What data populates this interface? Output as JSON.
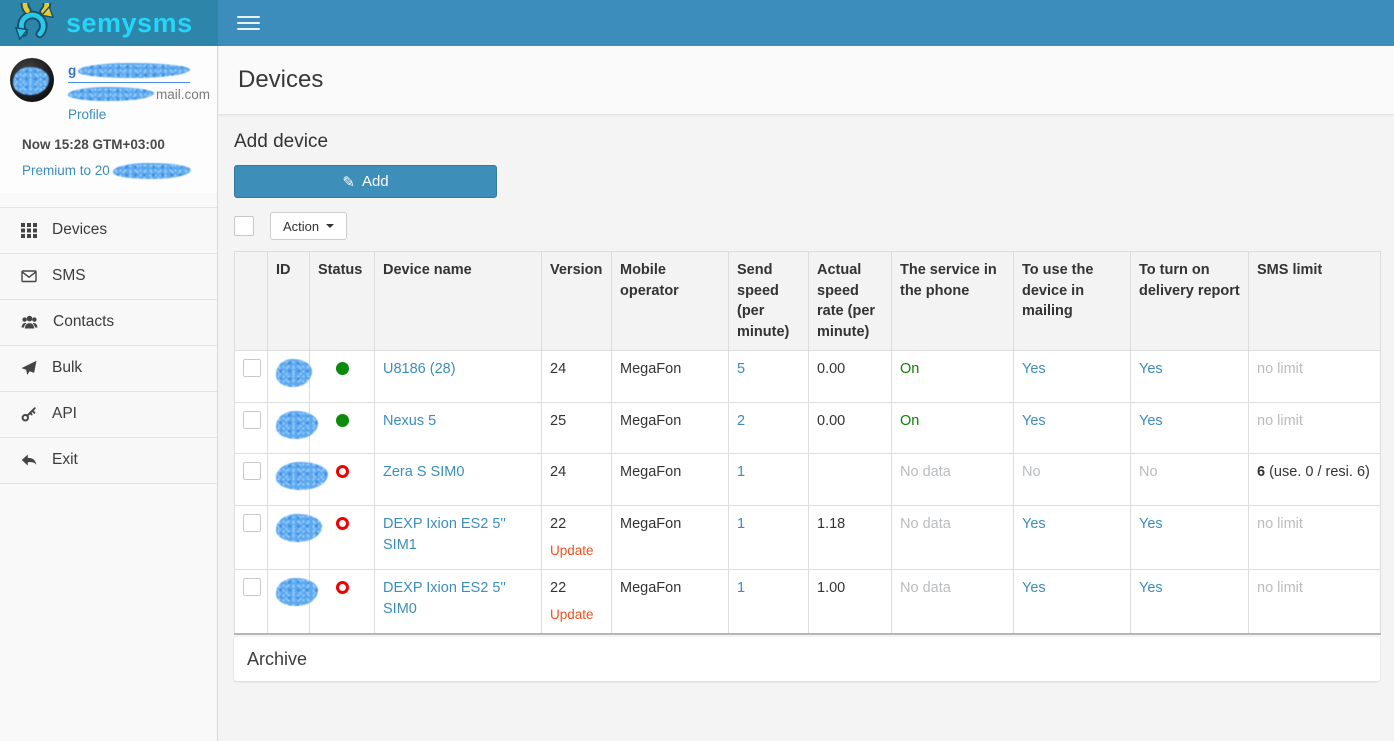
{
  "app": {
    "logo_text": "semysms",
    "page_title": "Devices"
  },
  "sidebar": {
    "profile": {
      "name_visible_prefix": "g",
      "email_visible_suffix": "mail.com",
      "profile_link": "Profile",
      "time": "Now 15:28 GTM+03:00",
      "premium_visible_prefix": "Premium to 20"
    },
    "menu": [
      {
        "label": "Devices",
        "icon": "grid-icon"
      },
      {
        "label": "SMS",
        "icon": "envelope-icon"
      },
      {
        "label": "Contacts",
        "icon": "users-icon"
      },
      {
        "label": "Bulk",
        "icon": "paper-plane-icon"
      },
      {
        "label": "API",
        "icon": "key-icon"
      },
      {
        "label": "Exit",
        "icon": "reply-icon"
      }
    ]
  },
  "main": {
    "add_section_title": "Add device",
    "add_button_label": "Add",
    "action_button_label": "Action",
    "archive_label": "Archive"
  },
  "devices_table": {
    "update_label": "Update",
    "columns": [
      {
        "key": "select",
        "label": ""
      },
      {
        "key": "id",
        "label": "ID"
      },
      {
        "key": "status",
        "label": "Status"
      },
      {
        "key": "name",
        "label": "Device name"
      },
      {
        "key": "version",
        "label": "Version"
      },
      {
        "key": "operator",
        "label": "Mobile operator"
      },
      {
        "key": "send-speed",
        "label": "Send speed (per minute)"
      },
      {
        "key": "actual-speed",
        "label": "Actual speed rate (per minute)"
      },
      {
        "key": "service",
        "label": "The service in the phone"
      },
      {
        "key": "use-mailing",
        "label": "To use the device in mailing"
      },
      {
        "key": "delivery-report",
        "label": "To turn on delivery report"
      },
      {
        "key": "sms-limit",
        "label": "SMS limit"
      }
    ],
    "rows": [
      {
        "status": "online",
        "name": "U8186 (28)",
        "version": "24",
        "show_update": false,
        "operator": "MegaFon",
        "send_speed": "5",
        "actual_speed": "0.00",
        "service_in_phone": "On",
        "use_in_mailing": "Yes",
        "delivery_report": "Yes",
        "sms_limit": "no limit",
        "sms_limit_bold_prefix": ""
      },
      {
        "status": "online",
        "name": "Nexus 5",
        "version": "25",
        "show_update": false,
        "operator": "MegaFon",
        "send_speed": "2",
        "actual_speed": "0.00",
        "service_in_phone": "On",
        "use_in_mailing": "Yes",
        "delivery_report": "Yes",
        "sms_limit": "no limit",
        "sms_limit_bold_prefix": ""
      },
      {
        "status": "offline",
        "name": "Zera S SIM0",
        "version": "24",
        "show_update": false,
        "operator": "MegaFon",
        "send_speed": "1",
        "actual_speed": "",
        "service_in_phone": "No data",
        "use_in_mailing": "No",
        "delivery_report": "No",
        "sms_limit": "6 (use. 0 / resi. 6)",
        "sms_limit_bold_prefix": "6"
      },
      {
        "status": "offline",
        "name": "DEXP Ixion ES2 5'' SIM1",
        "version": "22",
        "show_update": true,
        "operator": "MegaFon",
        "send_speed": "1",
        "actual_speed": "1.18",
        "service_in_phone": "No data",
        "use_in_mailing": "Yes",
        "delivery_report": "Yes",
        "sms_limit": "no limit",
        "sms_limit_bold_prefix": ""
      },
      {
        "status": "offline",
        "name": "DEXP Ixion ES2 5'' SIM0",
        "version": "22",
        "show_update": true,
        "operator": "MegaFon",
        "send_speed": "1",
        "actual_speed": "1.00",
        "service_in_phone": "No data",
        "use_in_mailing": "Yes",
        "delivery_report": "Yes",
        "sms_limit": "no limit",
        "sms_limit_bold_prefix": ""
      }
    ]
  },
  "colors": {
    "navbar_blue": "#3c8dbc",
    "logo_bg_teal": "#2d85a9",
    "logo_text_cyan": "#26d4f7",
    "link_blue": "#3c8dbc",
    "online_green": "#0b8a0b",
    "offline_red": "#f10000",
    "service_on_green": "#0e8000",
    "update_orange": "#f4511e",
    "muted_gray": "#b9bcbf",
    "add_button_blue": "#3d8eb9"
  }
}
